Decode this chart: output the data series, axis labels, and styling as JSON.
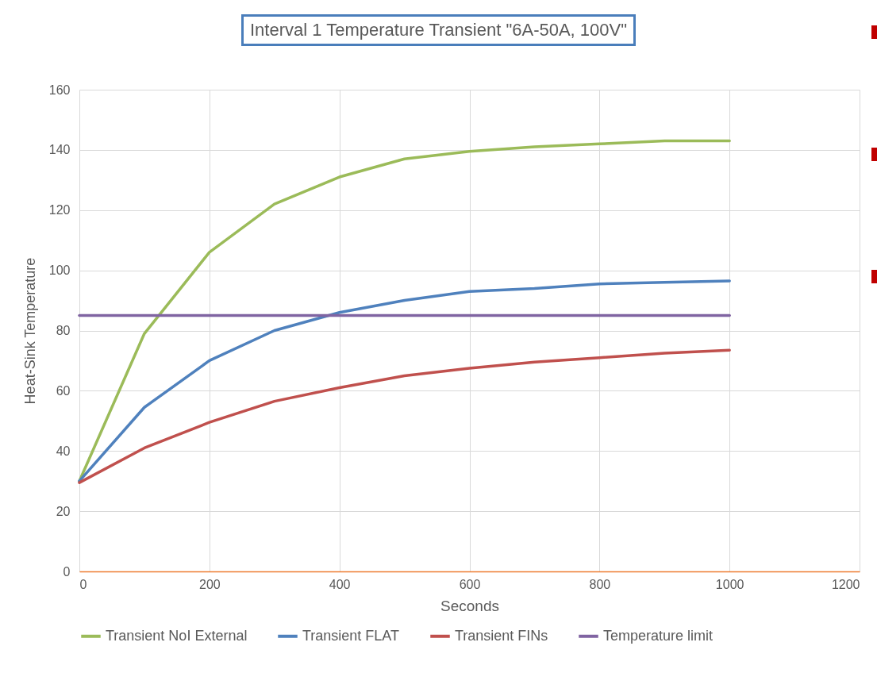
{
  "chart_data": {
    "type": "line",
    "title": "Interval 1 Temperature Transient \"6A-50A, 100V\"",
    "xlabel": "Seconds",
    "ylabel": "Heat-Sink Temperature",
    "x": [
      0,
      100,
      200,
      300,
      400,
      500,
      600,
      700,
      800,
      900,
      1000
    ],
    "series": [
      {
        "name": "Transient NoI External",
        "color": "#9bbb59",
        "values": [
          30,
          79,
          106,
          122,
          131,
          137,
          139.5,
          141,
          142,
          143,
          143
        ]
      },
      {
        "name": "Transient FLAT",
        "color": "#4f81bd",
        "values": [
          30,
          54.5,
          70,
          80,
          86,
          90,
          93,
          94,
          95.5,
          96,
          96.5
        ]
      },
      {
        "name": "Transient FINs",
        "color": "#c0504d",
        "values": [
          29.5,
          41,
          49.5,
          56.5,
          61,
          65,
          67.5,
          69.5,
          71,
          72.5,
          73.5
        ]
      },
      {
        "name": "Temperature limit",
        "color": "#8064a2",
        "x": [
          0,
          1000
        ],
        "values": [
          85,
          85
        ]
      }
    ],
    "xlim": [
      0,
      1200
    ],
    "xticks": [
      0,
      200,
      400,
      600,
      800,
      1000,
      1200
    ],
    "ylim": [
      0,
      160
    ],
    "yticks": [
      0,
      20,
      40,
      60,
      80,
      100,
      120,
      140,
      160
    ],
    "grid": true,
    "legend": "bottom",
    "marker": "none",
    "line_style": "solid"
  }
}
